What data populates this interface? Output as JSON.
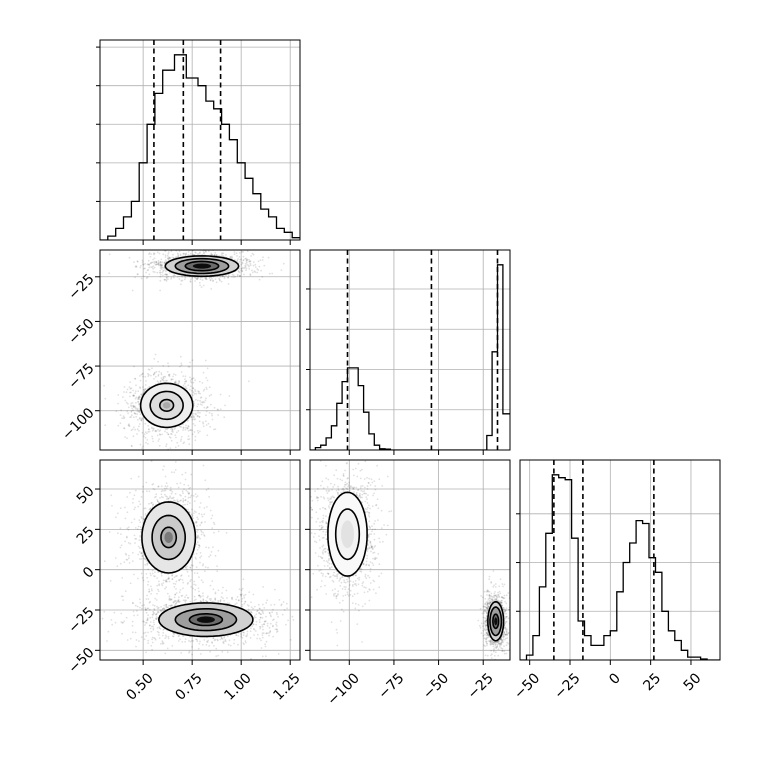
{
  "chart_data": {
    "type": "corner",
    "params": [
      {
        "range": [
          0.28,
          1.3
        ],
        "ticks": [
          0.5,
          0.75,
          1.0,
          1.25
        ],
        "tick_labels": [
          "0.50",
          "0.75",
          "1.00",
          "1.25"
        ],
        "quantiles": [
          0.555,
          0.705,
          0.895
        ],
        "hist": {
          "edges": [
            0.28,
            0.3,
            0.32,
            0.34,
            0.36,
            0.38,
            0.4,
            0.42,
            0.44,
            0.46,
            0.48,
            0.5,
            0.52,
            0.54,
            0.56,
            0.58,
            0.6,
            0.62,
            0.64,
            0.66,
            0.68,
            0.7,
            0.72,
            0.74,
            0.76,
            0.78,
            0.8,
            0.82,
            0.84,
            0.86,
            0.88,
            0.9,
            0.92,
            0.94,
            0.96,
            0.98,
            1.0,
            1.02,
            1.04,
            1.06,
            1.08,
            1.1,
            1.12,
            1.14,
            1.16,
            1.18,
            1.2,
            1.22,
            1.24,
            1.26,
            1.28,
            1.3
          ],
          "counts": [
            0,
            0,
            0.5,
            0.5,
            1.5,
            1.5,
            3,
            3,
            5,
            5,
            10,
            10,
            15,
            15,
            19,
            19,
            22,
            22,
            22,
            24,
            24,
            24,
            21,
            21,
            21,
            20,
            20,
            18,
            18,
            17,
            17,
            15,
            15,
            13,
            13,
            10,
            10,
            8,
            8,
            6,
            6,
            4,
            4,
            3,
            3,
            1.5,
            1.5,
            1,
            1,
            0.3,
            0.3
          ]
        }
      },
      {
        "range": [
          -122,
          -10
        ],
        "ticks": [
          -100,
          -75,
          -50,
          -25
        ],
        "tick_labels": [
          "−100",
          "−75",
          "−50",
          "−25"
        ],
        "quantiles": [
          -101,
          -54,
          -17
        ],
        "hist": {
          "edges": [
            -122,
            -119,
            -116,
            -113,
            -110,
            -107,
            -104,
            -101,
            -98,
            -95,
            -92,
            -89,
            -86,
            -83,
            -80,
            -77,
            -74,
            -71,
            -68,
            -65,
            -62,
            -59,
            -56,
            -53,
            -50,
            -47,
            -44,
            -41,
            -38,
            -35,
            -32,
            -29,
            -26,
            -23,
            -20,
            -17,
            -14,
            -11,
            -10
          ],
          "counts": [
            0,
            0.3,
            0.6,
            1.5,
            3,
            5.8,
            8.5,
            10.2,
            10.2,
            8,
            4.7,
            2,
            0.6,
            0.15,
            0.1,
            0,
            0,
            0,
            0,
            0,
            0,
            0,
            0,
            0,
            0,
            0,
            0,
            0,
            0,
            0,
            0,
            0,
            0,
            1.8,
            12.2,
            23,
            4.5,
            4.5
          ]
        }
      },
      {
        "range": [
          -56,
          68
        ],
        "ticks": [
          -50,
          -25,
          0,
          25,
          50
        ],
        "tick_labels": [
          "−50",
          "−25",
          "0",
          "25",
          "50"
        ],
        "quantiles": [
          -35,
          -17,
          27
        ],
        "hist": {
          "edges": [
            -56,
            -52,
            -48,
            -44,
            -40,
            -36,
            -32,
            -28,
            -24,
            -20,
            -16,
            -12,
            -8,
            -4,
            0,
            4,
            8,
            12,
            16,
            20,
            24,
            28,
            32,
            36,
            40,
            44,
            48,
            52,
            56,
            60,
            64,
            68
          ],
          "counts": [
            0,
            0.5,
            2.5,
            7.5,
            13,
            19,
            18.7,
            18.5,
            12.5,
            4,
            2.5,
            1.5,
            1.5,
            2.5,
            3,
            7,
            10,
            12,
            14.3,
            14,
            10.5,
            9,
            5,
            3,
            2,
            1,
            0.3,
            0.3,
            0.1,
            0,
            0
          ]
        }
      }
    ],
    "pairs": [
      {
        "row": 1,
        "col": 0,
        "blobs": [
          {
            "cx": 0.8,
            "cy": -19,
            "sx": 0.085,
            "sy": 2.6,
            "rot": -18,
            "weight": 0.55,
            "levels": [
              1.0,
              1.6,
              2.2
            ],
            "peak": 1.0
          },
          {
            "cx": 0.62,
            "cy": -97,
            "sx": 0.07,
            "sy": 6.5,
            "rot": -12,
            "weight": 0.45,
            "levels": [
              0.5,
              1.2,
              1.9
            ],
            "peak": 0.35
          }
        ]
      },
      {
        "row": 2,
        "col": 0,
        "blobs": [
          {
            "cx": 0.63,
            "cy": 20,
            "sx": 0.065,
            "sy": 10.5,
            "rot": 0,
            "weight": 0.48,
            "levels": [
              0.6,
              1.3,
              2.1
            ],
            "peak": 0.55
          },
          {
            "cx": 0.82,
            "cy": -31,
            "sx": 0.12,
            "sy": 5.2,
            "rot": -6,
            "weight": 0.52,
            "levels": [
              0.7,
              1.3,
              2.0
            ],
            "peak": 1.0
          }
        ]
      },
      {
        "row": 2,
        "col": 1,
        "blobs": [
          {
            "cx": -101,
            "cy": 22,
            "sx": 5.5,
            "sy": 13,
            "rot": 0,
            "weight": 0.48,
            "levels": [
              1.2,
              2.0
            ],
            "peak": 0.12
          },
          {
            "cx": -18,
            "cy": -32,
            "sx": 2.0,
            "sy": 5.5,
            "rot": 0,
            "weight": 0.52,
            "levels": [
              0.8,
              1.6,
              2.2
            ],
            "peak": 1.0
          }
        ]
      }
    ]
  }
}
